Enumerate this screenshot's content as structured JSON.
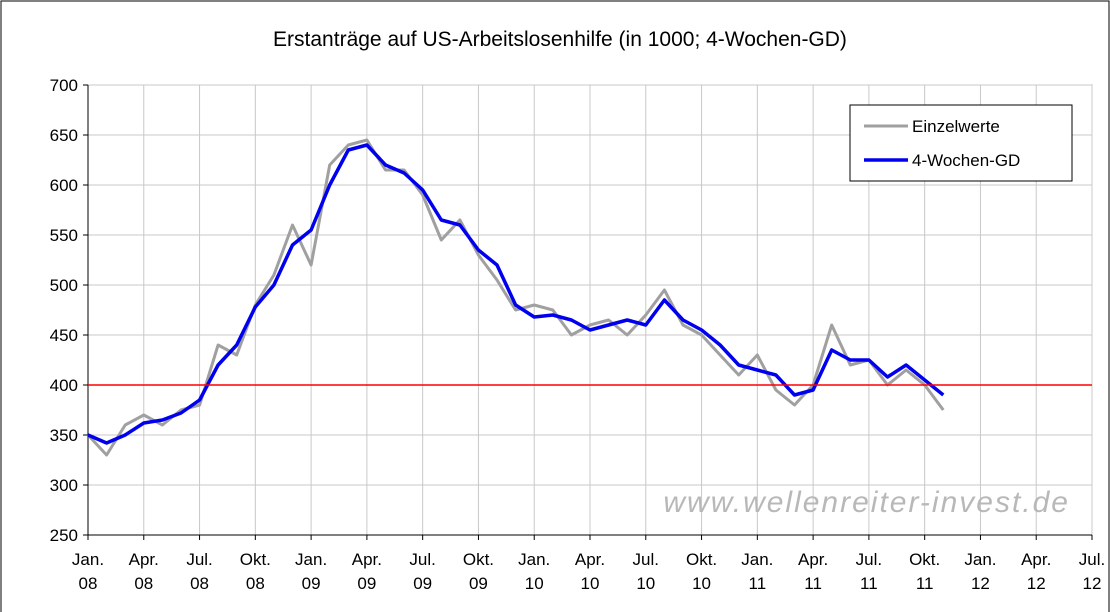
{
  "chart_data": {
    "type": "line",
    "title": "Erstanträge auf US-Arbeitslosenhilfe (in 1000; 4-Wochen-GD)",
    "watermark": "www.wellenreiter-invest.de",
    "x": [
      "2008-01",
      "2008-02",
      "2008-03",
      "2008-04",
      "2008-05",
      "2008-06",
      "2008-07",
      "2008-08",
      "2008-09",
      "2008-10",
      "2008-11",
      "2008-12",
      "2009-01",
      "2009-02",
      "2009-03",
      "2009-04",
      "2009-05",
      "2009-06",
      "2009-07",
      "2009-08",
      "2009-09",
      "2009-10",
      "2009-11",
      "2009-12",
      "2010-01",
      "2010-02",
      "2010-03",
      "2010-04",
      "2010-05",
      "2010-06",
      "2010-07",
      "2010-08",
      "2010-09",
      "2010-10",
      "2010-11",
      "2010-12",
      "2011-01",
      "2011-02",
      "2011-03",
      "2011-04",
      "2011-05",
      "2011-06",
      "2011-07",
      "2011-08",
      "2011-09",
      "2011-10",
      "2011-11"
    ],
    "series": [
      {
        "name": "Einzelwerte",
        "color": "#a0a0a0",
        "values": [
          350,
          330,
          360,
          370,
          360,
          375,
          380,
          440,
          430,
          480,
          510,
          560,
          520,
          620,
          640,
          645,
          615,
          615,
          590,
          545,
          565,
          530,
          505,
          475,
          480,
          475,
          450,
          460,
          465,
          450,
          470,
          495,
          460,
          450,
          430,
          410,
          430,
          395,
          380,
          400,
          460,
          420,
          425,
          400,
          415,
          400,
          375
        ]
      },
      {
        "name": "4-Wochen-GD",
        "color": "#0000ee",
        "values": [
          350,
          342,
          350,
          362,
          365,
          372,
          385,
          420,
          440,
          478,
          500,
          540,
          555,
          600,
          635,
          640,
          620,
          612,
          595,
          565,
          560,
          535,
          520,
          480,
          468,
          470,
          465,
          455,
          460,
          465,
          460,
          485,
          465,
          455,
          440,
          420,
          415,
          410,
          390,
          395,
          435,
          425,
          425,
          408,
          420,
          405,
          390
        ]
      }
    ],
    "xlim": [
      "2008-01",
      "2012-07"
    ],
    "xticks": [
      {
        "value": "2008-01",
        "label": "Jan. 08"
      },
      {
        "value": "2008-04",
        "label": "Apr. 08"
      },
      {
        "value": "2008-07",
        "label": "Jul. 08"
      },
      {
        "value": "2008-10",
        "label": "Okt. 08"
      },
      {
        "value": "2009-01",
        "label": "Jan. 09"
      },
      {
        "value": "2009-04",
        "label": "Apr. 09"
      },
      {
        "value": "2009-07",
        "label": "Jul. 09"
      },
      {
        "value": "2009-10",
        "label": "Okt. 09"
      },
      {
        "value": "2010-01",
        "label": "Jan. 10"
      },
      {
        "value": "2010-04",
        "label": "Apr. 10"
      },
      {
        "value": "2010-07",
        "label": "Jul. 10"
      },
      {
        "value": "2010-10",
        "label": "Okt. 10"
      },
      {
        "value": "2011-01",
        "label": "Jan. 11"
      },
      {
        "value": "2011-04",
        "label": "Apr. 11"
      },
      {
        "value": "2011-07",
        "label": "Jul. 11"
      },
      {
        "value": "2011-10",
        "label": "Okt. 11"
      },
      {
        "value": "2012-01",
        "label": "Jan. 12"
      },
      {
        "value": "2012-04",
        "label": "Apr. 12"
      },
      {
        "value": "2012-07",
        "label": "Jul. 12"
      }
    ],
    "ylim": [
      250,
      700
    ],
    "yticks": [
      250,
      300,
      350,
      400,
      450,
      500,
      550,
      600,
      650,
      700
    ],
    "grid": true,
    "reference_line": {
      "value": 400,
      "color": "#ff0000"
    },
    "legend": "upper right"
  }
}
